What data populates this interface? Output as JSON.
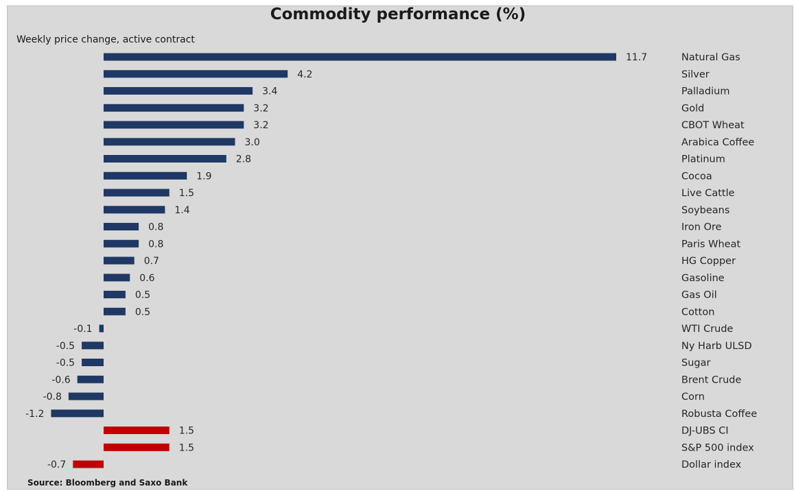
{
  "chart_data": {
    "type": "bar",
    "orientation": "horizontal",
    "title": "Commodity performance (%)",
    "subtitle": "Weekly price change, active contract",
    "source": "Source: Bloomberg and Saxo Bank",
    "categories": [
      "Natural Gas",
      "Silver",
      "Palladium",
      "Gold",
      "CBOT Wheat",
      "Arabica Coffee",
      "Platinum",
      "Cocoa",
      "Live Cattle",
      "Soybeans",
      "Iron Ore",
      "Paris Wheat",
      "HG Copper",
      "Gasoline",
      "Gas Oil",
      "Cotton",
      "WTI Crude",
      "Ny Harb ULSD",
      "Sugar",
      "Brent Crude",
      "Corn",
      "Robusta Coffee",
      "DJ-UBS CI",
      "S&P 500 index",
      "Dollar index"
    ],
    "values": [
      11.7,
      4.2,
      3.4,
      3.2,
      3.2,
      3.0,
      2.8,
      1.9,
      1.5,
      1.4,
      0.8,
      0.8,
      0.7,
      0.6,
      0.5,
      0.5,
      -0.1,
      -0.5,
      -0.5,
      -0.6,
      -0.8,
      -1.2,
      1.5,
      1.5,
      -0.7
    ],
    "value_labels": [
      "11.7",
      "4.2",
      "3.4",
      "3.2",
      "3.2",
      "3.0",
      "2.8",
      "1.9",
      "1.5",
      "1.4",
      "0.8",
      "0.8",
      "0.7",
      "0.6",
      "0.5",
      "0.5",
      "-0.1",
      "-0.5",
      "-0.5",
      "-0.6",
      "-0.8",
      "-1.2",
      "1.5",
      "1.5",
      "-0.7"
    ],
    "bar_colors": [
      "#1f3864",
      "#1f3864",
      "#1f3864",
      "#1f3864",
      "#1f3864",
      "#1f3864",
      "#1f3864",
      "#1f3864",
      "#1f3864",
      "#1f3864",
      "#1f3864",
      "#1f3864",
      "#1f3864",
      "#1f3864",
      "#1f3864",
      "#1f3864",
      "#1f3864",
      "#1f3864",
      "#1f3864",
      "#1f3864",
      "#1f3864",
      "#1f3864",
      "#c00000",
      "#c00000",
      "#c00000"
    ],
    "xlim": [
      -1.2,
      11.7
    ],
    "grid": false,
    "legend": "none"
  }
}
